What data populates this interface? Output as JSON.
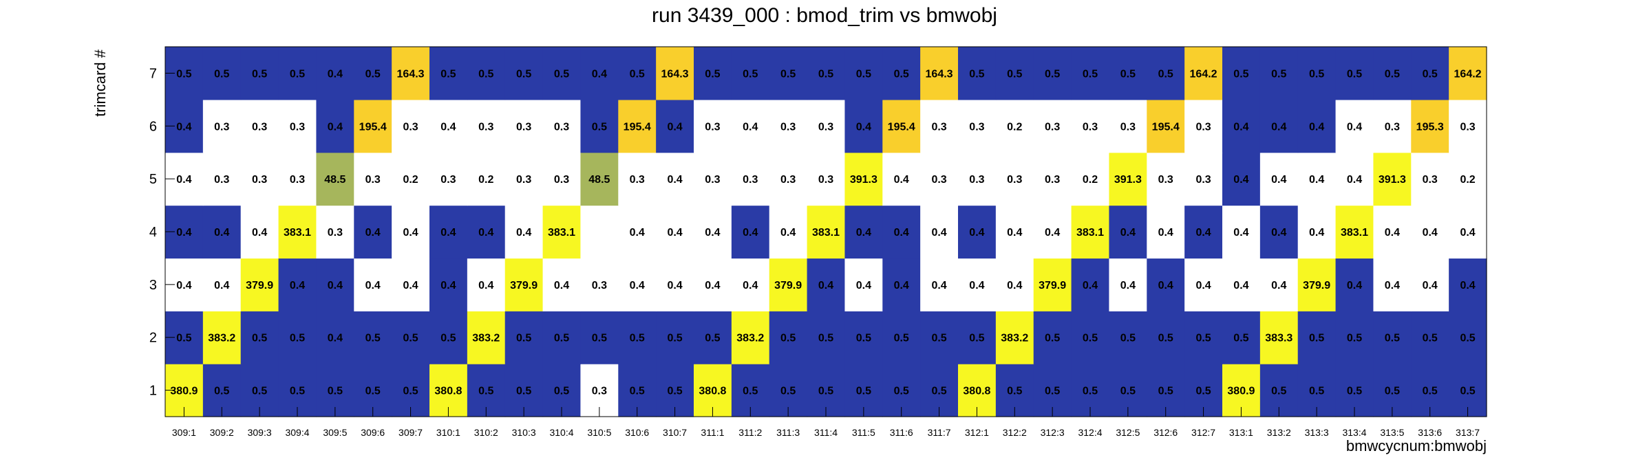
{
  "chart_data": {
    "type": "heatmap",
    "title": "run 3439_000 : bmod_trim vs bmwobj",
    "xlabel": "bmwcycnum:bmwobj",
    "ylabel": "trimcard #",
    "x_categories": [
      "309:1",
      "309:2",
      "309:3",
      "309:4",
      "309:5",
      "309:6",
      "309:7",
      "310:1",
      "310:2",
      "310:3",
      "310:4",
      "310:5",
      "310:6",
      "310:7",
      "311:1",
      "311:2",
      "311:3",
      "311:4",
      "311:5",
      "311:6",
      "311:7",
      "312:1",
      "312:2",
      "312:3",
      "312:4",
      "312:5",
      "312:6",
      "312:7",
      "313:1",
      "313:2",
      "313:3",
      "313:4",
      "313:5",
      "313:6",
      "313:7"
    ],
    "y_categories": [
      "1",
      "2",
      "3",
      "4",
      "5",
      "6",
      "7"
    ],
    "colors": {
      "blue": "#2a3ba6",
      "white": "#ffffff",
      "yellow": "#f7f722",
      "gold": "#f9cf2c",
      "olive": "#a6b65c"
    },
    "rows": [
      {
        "trimcard": "1",
        "values": [
          "380.9",
          "0.5",
          "0.5",
          "0.5",
          "0.5",
          "0.5",
          "0.5",
          "380.8",
          "0.5",
          "0.5",
          "0.5",
          "0.3",
          "0.5",
          "0.5",
          "380.8",
          "0.5",
          "0.5",
          "0.5",
          "0.5",
          "0.5",
          "0.5",
          "380.8",
          "0.5",
          "0.5",
          "0.5",
          "0.5",
          "0.5",
          "0.5",
          "380.9",
          "0.5",
          "0.5",
          "0.5",
          "0.5",
          "0.5",
          "0.5"
        ],
        "colors": [
          "Y",
          "B",
          "B",
          "B",
          "B",
          "B",
          "B",
          "Y",
          "B",
          "B",
          "B",
          "W",
          "B",
          "B",
          "Y",
          "B",
          "B",
          "B",
          "B",
          "B",
          "B",
          "Y",
          "B",
          "B",
          "B",
          "B",
          "B",
          "B",
          "Y",
          "B",
          "B",
          "B",
          "B",
          "B",
          "B"
        ]
      },
      {
        "trimcard": "2",
        "values": [
          "0.5",
          "383.2",
          "0.5",
          "0.5",
          "0.4",
          "0.5",
          "0.5",
          "0.5",
          "383.2",
          "0.5",
          "0.5",
          "0.5",
          "0.5",
          "0.5",
          "0.5",
          "383.2",
          "0.5",
          "0.5",
          "0.5",
          "0.5",
          "0.5",
          "0.5",
          "383.2",
          "0.5",
          "0.5",
          "0.5",
          "0.5",
          "0.5",
          "0.5",
          "383.3",
          "0.5",
          "0.5",
          "0.5",
          "0.5",
          "0.5"
        ],
        "colors": [
          "B",
          "Y",
          "B",
          "B",
          "B",
          "B",
          "B",
          "B",
          "Y",
          "B",
          "B",
          "B",
          "B",
          "B",
          "B",
          "Y",
          "B",
          "B",
          "B",
          "B",
          "B",
          "B",
          "Y",
          "B",
          "B",
          "B",
          "B",
          "B",
          "B",
          "Y",
          "B",
          "B",
          "B",
          "B",
          "B"
        ]
      },
      {
        "trimcard": "3",
        "values": [
          "0.4",
          "0.4",
          "379.9",
          "0.4",
          "0.4",
          "0.4",
          "0.4",
          "0.4",
          "0.4",
          "379.9",
          "0.4",
          "0.3",
          "0.4",
          "0.4",
          "0.4",
          "0.4",
          "379.9",
          "0.4",
          "0.4",
          "0.4",
          "0.4",
          "0.4",
          "0.4",
          "379.9",
          "0.4",
          "0.4",
          "0.4",
          "0.4",
          "0.4",
          "0.4",
          "379.9",
          "0.4",
          "0.4",
          "0.4",
          "0.4"
        ],
        "colors": [
          "W",
          "W",
          "Y",
          "B",
          "B",
          "W",
          "W",
          "B",
          "W",
          "Y",
          "W",
          "W",
          "W",
          "W",
          "W",
          "W",
          "Y",
          "B",
          "W",
          "B",
          "W",
          "W",
          "W",
          "Y",
          "B",
          "W",
          "B",
          "W",
          "W",
          "W",
          "Y",
          "B",
          "W",
          "W",
          "B"
        ]
      },
      {
        "trimcard": "4",
        "values": [
          "0.4",
          "0.4",
          "0.4",
          "383.1",
          "0.3",
          "0.4",
          "0.4",
          "0.4",
          "0.4",
          "0.4",
          "383.1",
          "",
          "0.4",
          "0.4",
          "0.4",
          "0.4",
          "0.4",
          "383.1",
          "0.4",
          "0.4",
          "0.4",
          "0.4",
          "0.4",
          "0.4",
          "383.1",
          "0.4",
          "0.4",
          "0.4",
          "0.4",
          "0.4",
          "0.4",
          "383.1",
          "0.4",
          "0.4",
          "0.4"
        ],
        "colors": [
          "B",
          "B",
          "W",
          "Y",
          "W",
          "B",
          "W",
          "B",
          "B",
          "W",
          "Y",
          "W",
          "W",
          "W",
          "W",
          "B",
          "W",
          "Y",
          "B",
          "B",
          "W",
          "B",
          "W",
          "W",
          "Y",
          "B",
          "W",
          "B",
          "W",
          "B",
          "W",
          "Y",
          "W",
          "W",
          "W"
        ]
      },
      {
        "trimcard": "5",
        "values": [
          "0.4",
          "0.3",
          "0.3",
          "0.3",
          "48.5",
          "0.3",
          "0.2",
          "0.3",
          "0.2",
          "0.3",
          "0.3",
          "48.5",
          "0.3",
          "0.4",
          "0.3",
          "0.3",
          "0.3",
          "0.3",
          "391.3",
          "0.4",
          "0.3",
          "0.3",
          "0.3",
          "0.3",
          "0.2",
          "391.3",
          "0.3",
          "0.3",
          "0.4",
          "0.4",
          "0.4",
          "0.4",
          "391.3",
          "0.3",
          "0.2"
        ],
        "colors": [
          "W",
          "W",
          "W",
          "W",
          "O",
          "W",
          "W",
          "W",
          "W",
          "W",
          "W",
          "O",
          "W",
          "W",
          "W",
          "W",
          "W",
          "W",
          "Y",
          "W",
          "W",
          "W",
          "W",
          "W",
          "W",
          "Y",
          "W",
          "W",
          "B",
          "W",
          "W",
          "W",
          "Y",
          "W",
          "W"
        ]
      },
      {
        "trimcard": "6",
        "values": [
          "0.4",
          "0.3",
          "0.3",
          "0.3",
          "0.4",
          "195.4",
          "0.3",
          "0.4",
          "0.3",
          "0.3",
          "0.3",
          "0.5",
          "195.4",
          "0.4",
          "0.3",
          "0.4",
          "0.3",
          "0.3",
          "0.4",
          "195.4",
          "0.3",
          "0.3",
          "0.2",
          "0.3",
          "0.3",
          "0.3",
          "195.4",
          "0.3",
          "0.4",
          "0.4",
          "0.4",
          "0.4",
          "0.3",
          "195.3",
          "0.3"
        ],
        "colors": [
          "B",
          "W",
          "W",
          "W",
          "B",
          "G",
          "W",
          "W",
          "W",
          "W",
          "W",
          "B",
          "G",
          "B",
          "W",
          "W",
          "W",
          "W",
          "B",
          "G",
          "W",
          "W",
          "W",
          "W",
          "W",
          "W",
          "G",
          "W",
          "B",
          "B",
          "B",
          "W",
          "W",
          "G",
          "W"
        ]
      },
      {
        "trimcard": "7",
        "values": [
          "0.5",
          "0.5",
          "0.5",
          "0.5",
          "0.4",
          "0.5",
          "164.3",
          "0.5",
          "0.5",
          "0.5",
          "0.5",
          "0.4",
          "0.5",
          "164.3",
          "0.5",
          "0.5",
          "0.5",
          "0.5",
          "0.5",
          "0.5",
          "164.3",
          "0.5",
          "0.5",
          "0.5",
          "0.5",
          "0.5",
          "0.5",
          "164.2",
          "0.5",
          "0.5",
          "0.5",
          "0.5",
          "0.5",
          "0.5",
          "164.2"
        ],
        "colors": [
          "B",
          "B",
          "B",
          "B",
          "B",
          "B",
          "G",
          "B",
          "B",
          "B",
          "B",
          "B",
          "B",
          "G",
          "B",
          "B",
          "B",
          "B",
          "B",
          "B",
          "G",
          "B",
          "B",
          "B",
          "B",
          "B",
          "B",
          "G",
          "B",
          "B",
          "B",
          "B",
          "B",
          "B",
          "G"
        ]
      }
    ]
  }
}
